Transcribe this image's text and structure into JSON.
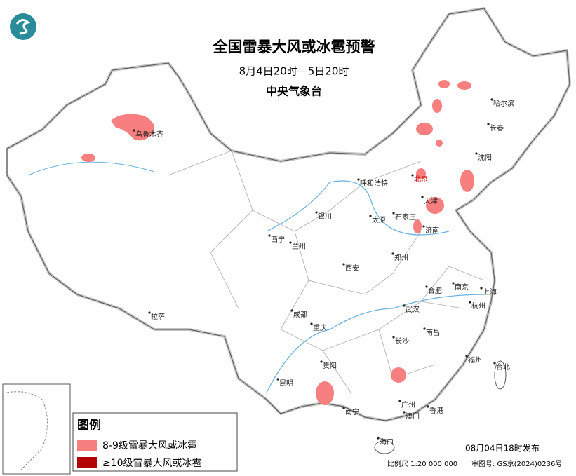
{
  "header": {
    "title": "全国雷暴大风或冰雹预警",
    "subtitle": "8月4日20时—5日20时",
    "agency": "中央气象台"
  },
  "cities": [
    "乌鲁木齐",
    "哈尔滨",
    "长春",
    "沈阳",
    "北京",
    "呼和浩特",
    "天津",
    "银川",
    "太原",
    "石家庄",
    "济南",
    "西宁",
    "兰州",
    "郑州",
    "西安",
    "南京",
    "合肥",
    "上海",
    "武汉",
    "杭州",
    "拉萨",
    "成都",
    "重庆",
    "南昌",
    "长沙",
    "福州",
    "台北",
    "贵阳",
    "昆明",
    "南宁",
    "广州",
    "澳门",
    "香港",
    "海口"
  ],
  "legend": {
    "title": "图例",
    "items": [
      "8-9级雷暴大风或冰雹",
      "≥10级雷暴大风或冰雹"
    ]
  },
  "footer": {
    "issued": "08月04日18时发布",
    "scale": "比例尺 1:20 000 000",
    "review": "审图号: GS京(2024)0236号"
  }
}
